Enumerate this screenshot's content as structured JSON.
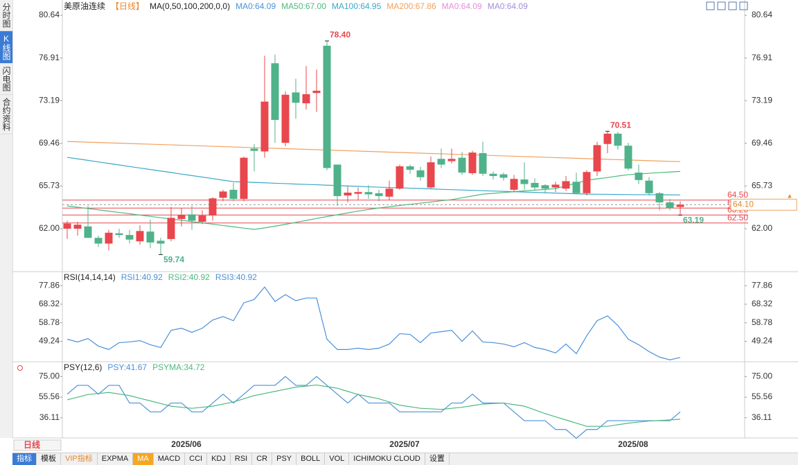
{
  "sidebar_tabs": [
    "分时图",
    "K线图",
    "闪电图",
    "合约资料"
  ],
  "active_tab": 1,
  "period_button": "日线",
  "toolbar": {
    "items": [
      "指标",
      "模板",
      "VIP指标",
      "EXPMA",
      "MA",
      "MACD",
      "CCI",
      "KDJ",
      "RSI",
      "CR",
      "PSY",
      "BOLL",
      "VOL",
      "ICHIMOKU CLOUD",
      "设置"
    ],
    "active": 4
  },
  "chart_data": [
    {
      "type": "candlestick",
      "header": [
        {
          "label": "美原油连续",
          "color": "#222222"
        },
        {
          "label": "【日线】",
          "color": "#e8862b"
        },
        {
          "label": "MA(0,50,100,200,0,0)",
          "color": "#222222"
        },
        {
          "label": "MA0:64.09",
          "color": "#4a90d9"
        },
        {
          "label": "MA50:67.00",
          "color": "#4cb87f"
        },
        {
          "label": "MA100:64.95",
          "color": "#3aa8c8"
        },
        {
          "label": "MA200:67.86",
          "color": "#f0a060"
        },
        {
          "label": "MA0:64.09",
          "color": "#e58fd8"
        },
        {
          "label": "MA0:64.09",
          "color": "#a08ed8"
        }
      ],
      "categories": [
        null,
        null,
        null,
        null,
        null,
        null,
        null,
        null,
        null,
        null,
        null,
        null,
        "2025/06",
        null,
        null,
        null,
        null,
        null,
        null,
        null,
        null,
        null,
        null,
        null,
        null,
        null,
        null,
        null,
        null,
        null,
        null,
        null,
        null,
        "2025/07",
        null,
        null,
        null,
        null,
        null,
        null,
        null,
        null,
        null,
        null,
        null,
        null,
        null,
        null,
        null,
        null,
        null,
        null,
        null,
        null,
        null,
        "2025/08",
        null,
        null,
        null,
        null
      ],
      "open": [
        62.0,
        62.0,
        62.2,
        61.2,
        60.7,
        61.6,
        61.45,
        60.9,
        61.75,
        60.95,
        61.1,
        62.85,
        63.25,
        62.6,
        63.15,
        64.7,
        65.4,
        64.6,
        69.0,
        68.75,
        76.45,
        69.5,
        73.9,
        72.95,
        73.85,
        77.98,
        67.6,
        64.9,
        65.05,
        65.2,
        65.1,
        64.8,
        65.5,
        67.45,
        67.1,
        65.6,
        68.1,
        67.9,
        68.2,
        66.85,
        68.6,
        66.8,
        66.75,
        65.4,
        66.3,
        66.0,
        65.8,
        65.6,
        65.5,
        66.1,
        65.1,
        67.0,
        69.4,
        70.3,
        69.25,
        66.9,
        66.2,
        65.1,
        64.3,
        63.9
      ],
      "high": [
        62.7,
        62.6,
        64.0,
        61.4,
        61.9,
        62.0,
        61.9,
        62.3,
        62.8,
        61.2,
        63.9,
        63.8,
        64.0,
        63.6,
        64.75,
        65.4,
        66.0,
        68.3,
        69.4,
        77.1,
        77.2,
        74.0,
        75.1,
        76.2,
        75.9,
        78.4,
        67.6,
        65.7,
        65.6,
        65.8,
        65.4,
        66.2,
        67.6,
        67.6,
        67.4,
        68.3,
        69.0,
        69.0,
        68.7,
        68.8,
        69.6,
        67.0,
        66.9,
        66.7,
        67.8,
        66.4,
        65.9,
        66.1,
        66.6,
        66.9,
        67.1,
        69.6,
        70.51,
        70.45,
        69.5,
        67.6,
        66.5,
        65.2,
        64.6,
        64.4
      ],
      "low": [
        61.1,
        61.4,
        61.2,
        60.4,
        60.1,
        61.2,
        60.7,
        60.6,
        60.3,
        59.74,
        60.9,
        62.2,
        61.9,
        62.4,
        62.7,
        64.4,
        64.4,
        64.4,
        67.0,
        68.2,
        69.5,
        69.2,
        71.6,
        72.4,
        72.2,
        67.1,
        64.0,
        64.3,
        64.5,
        64.6,
        64.4,
        64.5,
        65.4,
        66.8,
        66.2,
        65.5,
        67.3,
        67.7,
        66.7,
        66.7,
        66.6,
        66.3,
        66.2,
        65.2,
        65.4,
        65.4,
        65.1,
        65.2,
        65.3,
        65.0,
        64.9,
        66.6,
        68.6,
        68.9,
        67.1,
        65.9,
        64.9,
        63.6,
        63.6,
        63.19
      ],
      "close": [
        62.45,
        62.35,
        61.2,
        60.7,
        61.65,
        61.45,
        61.05,
        61.8,
        60.8,
        60.7,
        62.95,
        63.2,
        62.7,
        63.15,
        64.65,
        65.25,
        64.6,
        68.2,
        68.8,
        73.1,
        71.5,
        73.7,
        73.0,
        73.75,
        74.05,
        67.3,
        64.85,
        65.15,
        65.2,
        65.0,
        64.85,
        65.5,
        67.45,
        67.15,
        66.5,
        67.8,
        67.6,
        68.1,
        66.9,
        68.65,
        66.8,
        66.6,
        66.45,
        66.35,
        65.9,
        65.6,
        65.5,
        65.85,
        66.15,
        65.1,
        66.95,
        69.3,
        70.3,
        69.25,
        67.25,
        66.25,
        65.1,
        64.3,
        63.8,
        64.1
      ],
      "up_color": "#e8474e",
      "down_color": "#4fb28a",
      "ma_lines": [
        {
          "color": "#4cb87f",
          "values": [
            63.99,
            63.88,
            63.76,
            63.65,
            63.53,
            63.42,
            63.31,
            63.19,
            63.08,
            62.96,
            62.85,
            62.74,
            62.62,
            62.51,
            62.4,
            62.28,
            62.17,
            62.05,
            61.94,
            62.07,
            62.22,
            62.38,
            62.55,
            62.72,
            62.9,
            63.06,
            63.22,
            63.38,
            63.54,
            63.68,
            63.81,
            63.92,
            64.03,
            64.13,
            64.23,
            64.33,
            64.44,
            64.54,
            64.7,
            64.86,
            65.02,
            65.09,
            65.16,
            65.23,
            65.3,
            65.37,
            65.43,
            65.5,
            65.74,
            65.98,
            66.23,
            66.35,
            66.47,
            66.6,
            66.72,
            66.78,
            66.84,
            66.9,
            66.95,
            67.0
          ]
        },
        {
          "color": "#3aa8c8",
          "values": [
            68.23,
            68.1,
            67.97,
            67.83,
            67.7,
            67.57,
            67.43,
            67.3,
            67.17,
            67.04,
            66.91,
            66.77,
            66.64,
            66.51,
            66.38,
            66.24,
            66.11,
            66.08,
            66.04,
            66.01,
            65.97,
            65.94,
            65.9,
            65.87,
            65.84,
            65.8,
            65.77,
            65.73,
            65.7,
            65.66,
            65.63,
            65.6,
            65.57,
            65.54,
            65.51,
            65.48,
            65.44,
            65.41,
            65.38,
            65.35,
            65.32,
            65.29,
            65.26,
            65.23,
            65.2,
            65.17,
            65.14,
            65.11,
            65.08,
            65.05,
            65.02,
            65.01,
            65.0,
            64.99,
            64.98,
            64.97,
            64.97,
            64.96,
            64.96,
            64.95
          ]
        },
        {
          "color": "#f0a060",
          "values": [
            69.62,
            69.59,
            69.56,
            69.53,
            69.5,
            69.47,
            69.44,
            69.41,
            69.38,
            69.35,
            69.32,
            69.29,
            69.26,
            69.23,
            69.2,
            69.17,
            69.14,
            69.11,
            69.08,
            69.05,
            69.02,
            68.99,
            68.96,
            68.93,
            68.9,
            68.87,
            68.84,
            68.81,
            68.78,
            68.75,
            68.72,
            68.69,
            68.66,
            68.63,
            68.6,
            68.57,
            68.54,
            68.51,
            68.48,
            68.45,
            68.42,
            68.39,
            68.36,
            68.33,
            68.3,
            68.27,
            68.24,
            68.21,
            68.18,
            68.15,
            68.12,
            68.09,
            68.06,
            68.03,
            68.0,
            67.97,
            67.94,
            67.91,
            67.88,
            67.86
          ]
        }
      ],
      "ylim": [
        58.25,
        81.67
      ],
      "yticks": [
        80.64,
        76.91,
        73.19,
        69.46,
        65.73,
        {
          "value": 62,
          "label": "62.00"
        }
      ],
      "grid": false,
      "levels": [
        {
          "value": 64.5,
          "label": "64.50"
        },
        {
          "value": 63.8,
          "label": "63.80"
        },
        {
          "value": 63.2,
          "label": "63.20"
        },
        {
          "value": 62.5,
          "label": "62.50"
        }
      ],
      "level_color": "#e8474e",
      "last_price": {
        "value": 64.1,
        "label": "64.10"
      },
      "extremes": [
        {
          "value": 78.4,
          "label": "78.40",
          "color": "#e8474e"
        },
        {
          "value": 70.51,
          "label": "70.51",
          "color": "#e8474e"
        },
        {
          "value": 59.74,
          "label": "59.74",
          "color": "#4fb28a"
        },
        {
          "value": 63.19,
          "label": "63.19",
          "color": "#4fb28a"
        }
      ]
    },
    {
      "type": "line",
      "header": [
        {
          "label": "RSI(14,14,14)",
          "color": "#222222"
        },
        {
          "label": "RSI1:40.92",
          "color": "#4a90d9"
        },
        {
          "label": "RSI2:40.92",
          "color": "#4cb87f"
        },
        {
          "label": "RSI3:40.92",
          "color": "#4a90d9"
        }
      ],
      "series": [
        {
          "color": "#4a90d9",
          "values": [
            50.3,
            48.89,
            50.66,
            46.77,
            45.0,
            48.54,
            48.89,
            49.6,
            47.48,
            46.06,
            54.9,
            55.96,
            53.84,
            55.96,
            60.19,
            61.96,
            59.84,
            69.03,
            70.79,
            77.15,
            69.73,
            73.27,
            70.09,
            71.5,
            71.5,
            50.3,
            45.0,
            45.0,
            45.71,
            45.0,
            45.71,
            47.83,
            53.13,
            52.78,
            48.54,
            53.48,
            54.19,
            54.9,
            49.24,
            54.54,
            48.89,
            48.54,
            47.83,
            46.42,
            48.54,
            46.06,
            45.0,
            43.24,
            47.83,
            42.88,
            52.07,
            59.84,
            62.31,
            57.37,
            50.3,
            47.48,
            43.94,
            41.12,
            39.7,
            40.92
          ]
        }
      ],
      "ylim": [
        38,
        84
      ],
      "yticks": [
        77.86,
        68.32,
        58.78,
        49.24
      ],
      "grid": false
    },
    {
      "type": "line",
      "header": [
        {
          "label": "PSY(12,6)",
          "color": "#222222"
        },
        {
          "label": "PSY:41.67",
          "color": "#4a90d9"
        },
        {
          "label": "PSYMA:34.72",
          "color": "#4cb87f"
        }
      ],
      "series": [
        {
          "color": "#4a90d9",
          "values": [
            58.33,
            66.67,
            66.67,
            58.33,
            66.67,
            66.67,
            50,
            50,
            41.67,
            41.67,
            50,
            50,
            41.67,
            41.67,
            50,
            58.33,
            50,
            58.33,
            66.67,
            66.67,
            66.67,
            75,
            66.67,
            66.67,
            75,
            66.67,
            58.33,
            50,
            58.33,
            50,
            50,
            50,
            41.67,
            41.67,
            41.67,
            41.67,
            41.67,
            50,
            50,
            58.33,
            50,
            50,
            50,
            41.67,
            33.33,
            33.33,
            33.33,
            25,
            25,
            16.67,
            25,
            25,
            33.33,
            33.33,
            33.33,
            33.33,
            33.33,
            33.33,
            33.33,
            41.67
          ]
        },
        {
          "color": "#4cb87f",
          "values": [
            53,
            55.5,
            58,
            59,
            60,
            58.5,
            57,
            54.5,
            52,
            49.5,
            47,
            46,
            45,
            46,
            47,
            49,
            51,
            54,
            57,
            59,
            61,
            63,
            65,
            66,
            67,
            65.5,
            64,
            61,
            58,
            56,
            54,
            51,
            48,
            46.5,
            45,
            44.5,
            44,
            45,
            46,
            47.5,
            49,
            49.5,
            50,
            48.5,
            47,
            43.5,
            40,
            37,
            34,
            31,
            28,
            28,
            28,
            29.5,
            31,
            32,
            33,
            33.5,
            34,
            34.72
          ]
        }
      ],
      "ylim": [
        17,
        87
      ],
      "yticks": [
        {
          "value": 75,
          "label": "75.00"
        },
        55.56,
        36.11
      ],
      "grid": false
    }
  ]
}
